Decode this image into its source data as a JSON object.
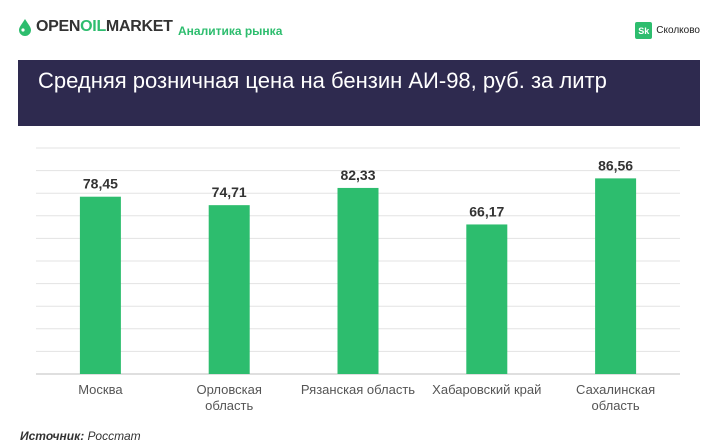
{
  "header": {
    "logo_prefix": "OPEN",
    "logo_accent": "OIL",
    "logo_suffix": "MARKET",
    "tagline": "Аналитика рынка",
    "partner_badge": "Sk",
    "partner_name": "Сколково"
  },
  "title": "Средняя розничная цена на бензин АИ-98, руб. за литр",
  "chart_data": {
    "type": "bar",
    "title": "Средняя розничная цена на бензин АИ-98, руб. за литр",
    "categories": [
      "Москва",
      "Орловская область",
      "Рязанская область",
      "Хабаровский край",
      "Сахалинская область"
    ],
    "category_lines": [
      [
        "Москва"
      ],
      [
        "Орловская",
        "область"
      ],
      [
        "Рязанская область"
      ],
      [
        "Хабаровский край"
      ],
      [
        "Сахалинская",
        "область"
      ]
    ],
    "values": [
      78.45,
      74.71,
      82.33,
      66.17,
      86.56
    ],
    "value_labels": [
      "78,45",
      "74,71",
      "82,33",
      "66,17",
      "86,56"
    ],
    "ylim": [
      0,
      100
    ],
    "grid": true,
    "legend": "none",
    "bar_color": "#2dbd6e"
  },
  "source": {
    "label": "Источник:",
    "value": "Росстат"
  },
  "colors": {
    "accent": "#2dbd6e",
    "title_band": "#2e2a4f"
  }
}
